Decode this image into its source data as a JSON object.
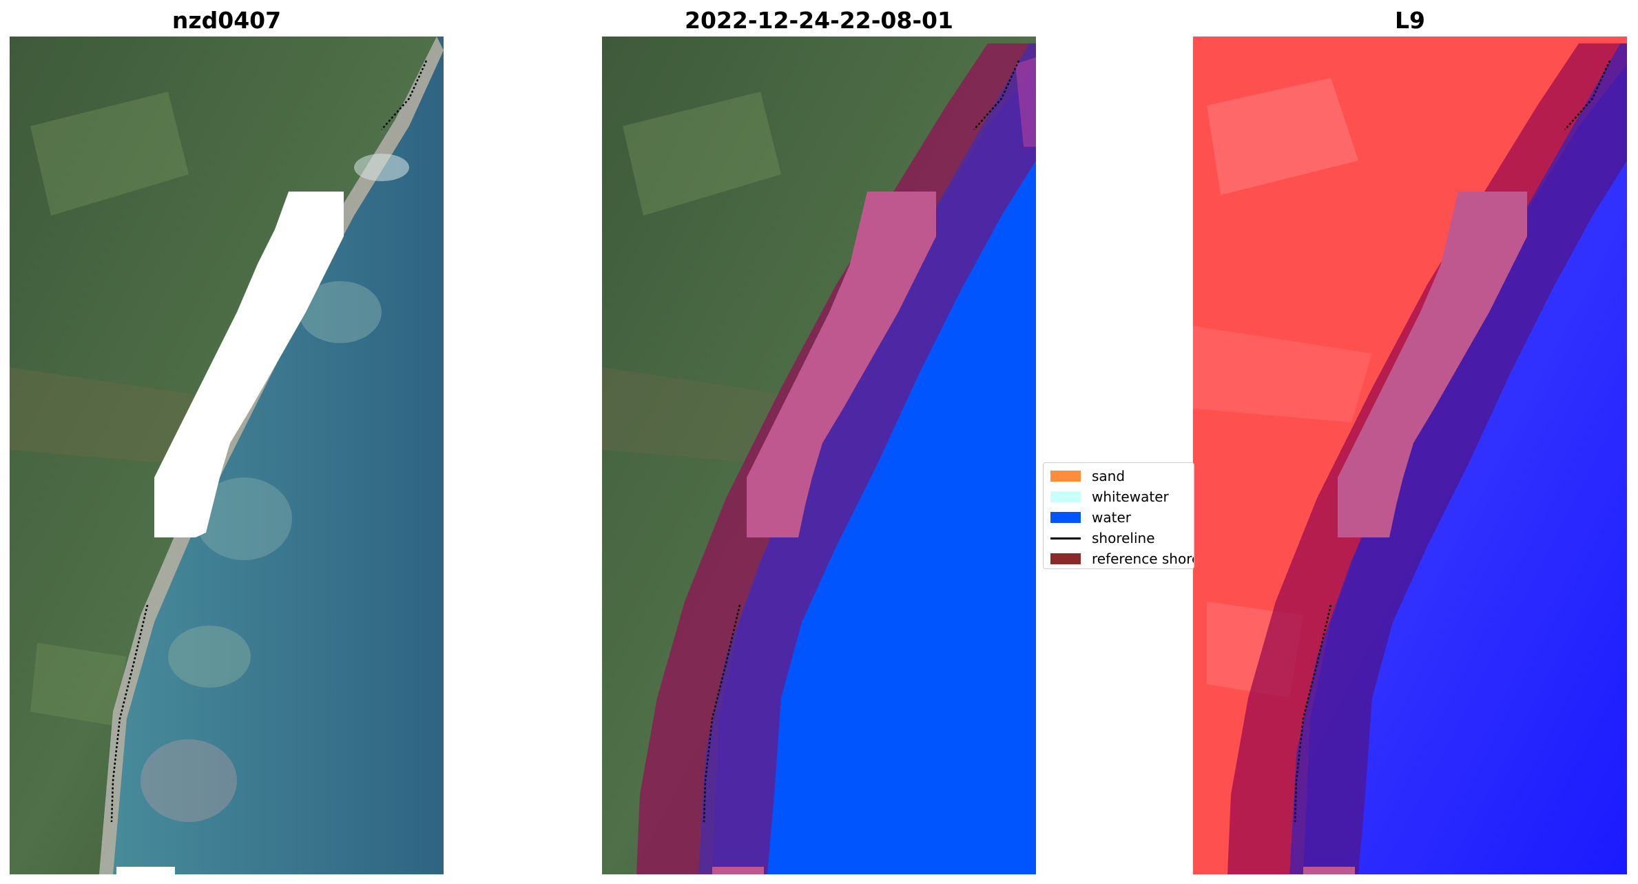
{
  "panels": [
    {
      "title": "nzd0407"
    },
    {
      "title": "2022-12-24-22-08-01"
    },
    {
      "title": "L9"
    }
  ],
  "legend": {
    "items": [
      {
        "label": "sand",
        "color": "#ff8c3a",
        "kind": "patch"
      },
      {
        "label": "whitewater",
        "color": "#c8fff8",
        "kind": "patch"
      },
      {
        "label": "water",
        "color": "#0055ff",
        "kind": "patch"
      },
      {
        "label": "shoreline",
        "color": "#000000",
        "kind": "line"
      },
      {
        "label": "reference shoreline buffer",
        "color": "#8b2a2a",
        "kind": "patch"
      }
    ]
  },
  "colors": {
    "land": "#4a6a44",
    "sea": "#3d7a90",
    "water_class": "#0055ff",
    "buffer": "#8a1a55",
    "buffer_over_water": "#55259c",
    "nodata": "#ffffff",
    "nodata_tint": "#c05890",
    "index_land": "#ff4a4a",
    "index_water": "#2a2aff"
  }
}
